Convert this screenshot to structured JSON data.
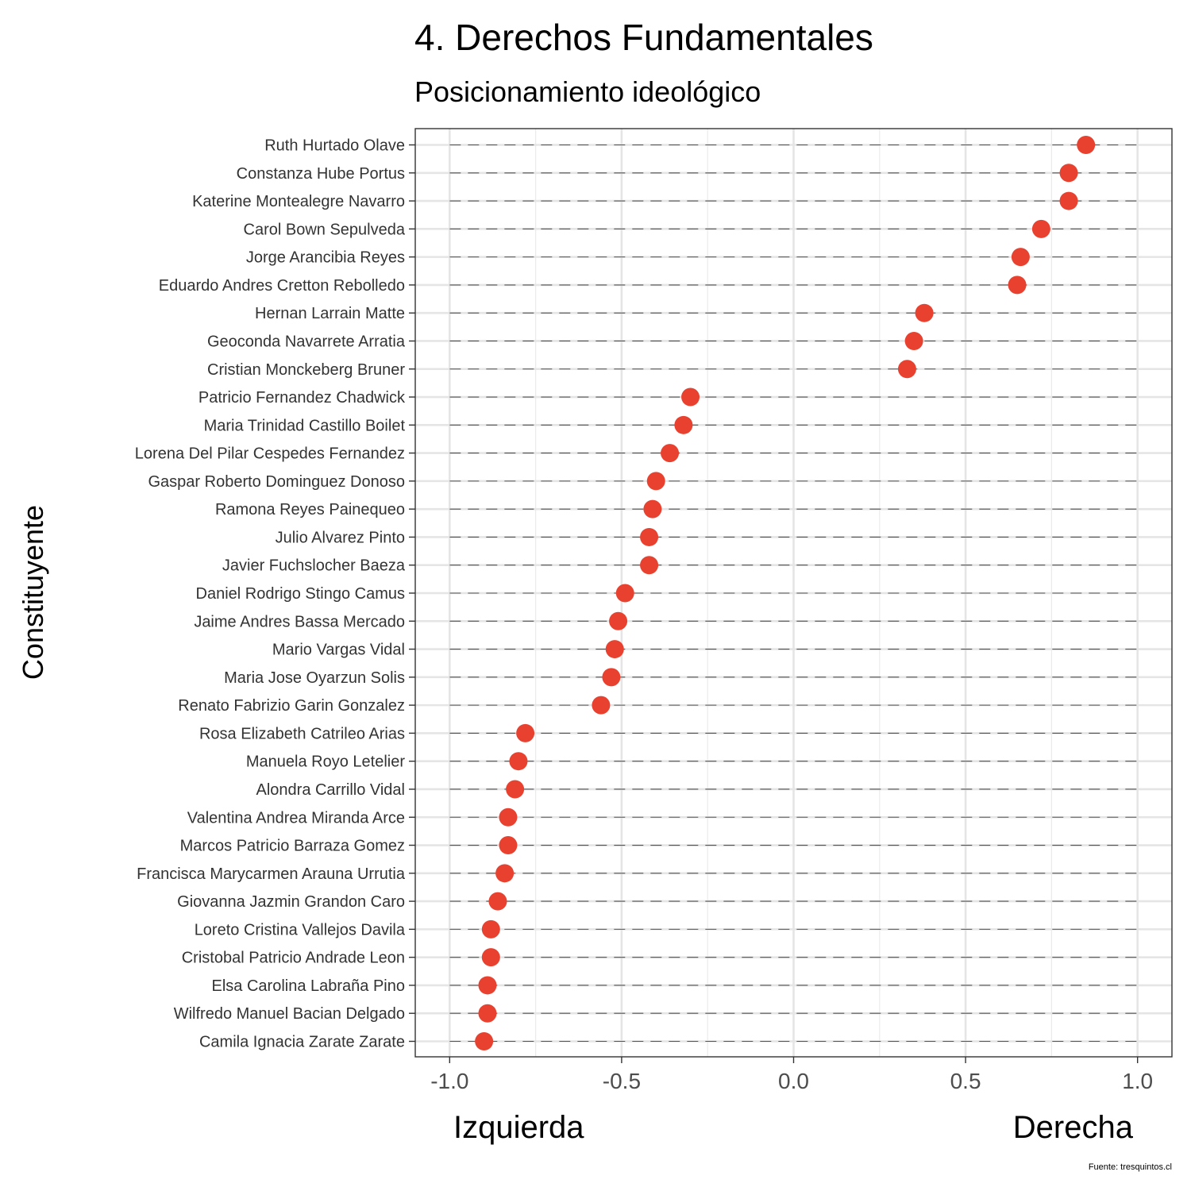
{
  "chart_data": {
    "type": "scatter",
    "title": "4. Derechos Fundamentales",
    "subtitle": "Posicionamiento ideológico",
    "ylabel": "Constituyente",
    "xlabel_left": "Izquierda",
    "xlabel_right": "Derecha",
    "caption": "Fuente: tresquintos.cl",
    "xlim": [
      -1.1,
      1.1
    ],
    "x_ticks": [
      "-1.0",
      "-0.5",
      "0.0",
      "0.5",
      "1.0"
    ],
    "x_tick_values": [
      -1.0,
      -0.5,
      0.0,
      0.5,
      1.0
    ],
    "grid": true,
    "point_color": "#E8412F",
    "points": [
      {
        "name": "Ruth Hurtado Olave",
        "x": 0.85
      },
      {
        "name": "Constanza Hube Portus",
        "x": 0.8
      },
      {
        "name": "Katerine Montealegre Navarro",
        "x": 0.8
      },
      {
        "name": "Carol Bown Sepulveda",
        "x": 0.72
      },
      {
        "name": "Jorge Arancibia Reyes",
        "x": 0.66
      },
      {
        "name": "Eduardo Andres Cretton Rebolledo",
        "x": 0.65
      },
      {
        "name": "Hernan Larrain Matte",
        "x": 0.38
      },
      {
        "name": "Geoconda Navarrete Arratia",
        "x": 0.35
      },
      {
        "name": "Cristian Monckeberg Bruner",
        "x": 0.33
      },
      {
        "name": "Patricio Fernandez Chadwick",
        "x": -0.3
      },
      {
        "name": "Maria Trinidad Castillo Boilet",
        "x": -0.32
      },
      {
        "name": "Lorena Del Pilar Cespedes Fernandez",
        "x": -0.36
      },
      {
        "name": "Gaspar Roberto Dominguez Donoso",
        "x": -0.4
      },
      {
        "name": "Ramona Reyes Painequeo",
        "x": -0.41
      },
      {
        "name": "Julio Alvarez Pinto",
        "x": -0.42
      },
      {
        "name": "Javier Fuchslocher Baeza",
        "x": -0.42
      },
      {
        "name": "Daniel Rodrigo Stingo Camus",
        "x": -0.49
      },
      {
        "name": "Jaime Andres Bassa Mercado",
        "x": -0.51
      },
      {
        "name": "Mario Vargas Vidal",
        "x": -0.52
      },
      {
        "name": "Maria Jose Oyarzun Solis",
        "x": -0.53
      },
      {
        "name": "Renato Fabrizio Garin Gonzalez",
        "x": -0.56
      },
      {
        "name": "Rosa Elizabeth Catrileo Arias",
        "x": -0.78
      },
      {
        "name": "Manuela Royo Letelier",
        "x": -0.8
      },
      {
        "name": "Alondra Carrillo Vidal",
        "x": -0.81
      },
      {
        "name": "Valentina Andrea Miranda Arce",
        "x": -0.83
      },
      {
        "name": "Marcos Patricio Barraza Gomez",
        "x": -0.83
      },
      {
        "name": "Francisca Marycarmen Arauna Urrutia",
        "x": -0.84
      },
      {
        "name": "Giovanna Jazmin Grandon Caro",
        "x": -0.86
      },
      {
        "name": "Loreto Cristina Vallejos Davila",
        "x": -0.88
      },
      {
        "name": "Cristobal Patricio Andrade Leon",
        "x": -0.88
      },
      {
        "name": "Elsa Carolina Labraña Pino",
        "x": -0.89
      },
      {
        "name": "Wilfredo Manuel Bacian Delgado",
        "x": -0.89
      },
      {
        "name": "Camila Ignacia Zarate Zarate",
        "x": -0.9
      }
    ]
  }
}
